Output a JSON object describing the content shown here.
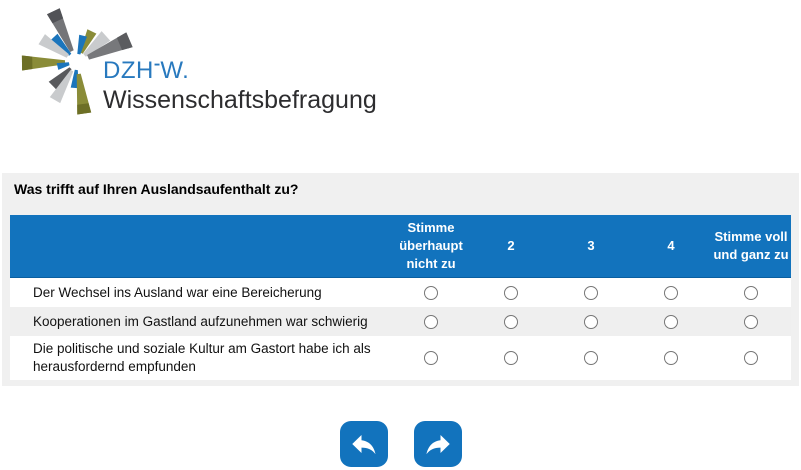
{
  "logo": {
    "wordmark": {
      "part1": "DZH",
      "hyphen": "-",
      "part2": "W."
    },
    "subtitle": "Wissenschaftsbefragung",
    "starburst_icon": "dzhw-starburst-logo"
  },
  "colors": {
    "brand_blue": "#1273BD",
    "wordmark_blue": "#2879BE",
    "panel_background": "#F0F0F0",
    "row_alternate": "#EFEFEF",
    "logo_olive": "#8A8C38",
    "logo_gray": "#77787B",
    "logo_silver": "#C9CBCD",
    "logo_blue": "#1B75BC"
  },
  "question": {
    "title": "Was trifft auf Ihren Auslandsaufenthalt zu?"
  },
  "matrix": {
    "column_headers": [
      "Stimme überhaupt nicht zu",
      "2",
      "3",
      "4",
      "Stimme voll und ganz zu"
    ],
    "rows": [
      {
        "label": "Der Wechsel ins Ausland war eine Bereicherung",
        "selected": null
      },
      {
        "label": "Kooperationen im Gastland aufzunehmen war schwierig",
        "selected": null
      },
      {
        "label": "Die politische und soziale Kultur am Gastort habe ich als herausfordernd empfunden",
        "selected": null
      }
    ]
  },
  "navigation": {
    "back_icon": "back-arrow-icon",
    "forward_icon": "forward-arrow-icon"
  }
}
